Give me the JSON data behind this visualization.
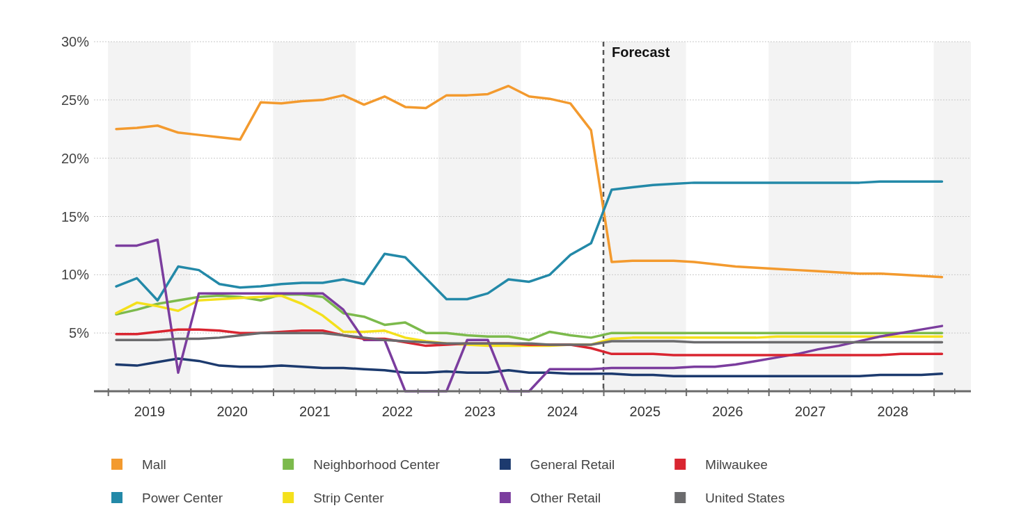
{
  "chart_data": {
    "type": "line",
    "x": [
      2019.1,
      2019.35,
      2019.6,
      2019.85,
      2020.1,
      2020.35,
      2020.6,
      2020.85,
      2021.1,
      2021.35,
      2021.6,
      2021.85,
      2022.1,
      2022.35,
      2022.6,
      2022.85,
      2023.1,
      2023.35,
      2023.6,
      2023.85,
      2024.1,
      2024.35,
      2024.6,
      2024.85,
      2025.1,
      2025.35,
      2025.6,
      2025.85,
      2026.1,
      2026.35,
      2026.6,
      2026.85,
      2027.1,
      2027.35,
      2027.6,
      2027.85,
      2028.1,
      2028.35,
      2028.6,
      2028.85,
      2029.1
    ],
    "series": [
      {
        "name": "Mall",
        "color": "#f39a2e",
        "values": [
          22.5,
          22.6,
          22.8,
          22.2,
          22.0,
          21.8,
          21.6,
          24.8,
          24.7,
          24.9,
          25.0,
          25.4,
          24.6,
          25.3,
          24.4,
          24.3,
          25.4,
          25.4,
          25.5,
          26.2,
          25.3,
          25.1,
          24.7,
          22.4,
          11.1,
          11.2,
          11.2,
          11.2,
          11.1,
          10.9,
          10.7,
          10.6,
          10.5,
          10.4,
          10.3,
          10.2,
          10.1,
          10.1,
          10.0,
          9.9,
          9.8
        ]
      },
      {
        "name": "Power Center",
        "color": "#2389a8",
        "values": [
          9.0,
          9.7,
          7.8,
          10.7,
          10.4,
          9.2,
          8.9,
          9.0,
          9.2,
          9.3,
          9.3,
          9.6,
          9.2,
          11.8,
          11.5,
          9.7,
          7.9,
          7.9,
          8.4,
          9.6,
          9.4,
          10.0,
          11.7,
          12.7,
          17.3,
          17.5,
          17.7,
          17.8,
          17.9,
          17.9,
          17.9,
          17.9,
          17.9,
          17.9,
          17.9,
          17.9,
          17.9,
          18.0,
          18.0,
          18.0,
          18.0
        ]
      },
      {
        "name": "Neighborhood Center",
        "color": "#7cba4c",
        "values": [
          6.6,
          7.0,
          7.5,
          7.8,
          8.1,
          8.2,
          8.1,
          7.8,
          8.3,
          8.3,
          8.1,
          6.7,
          6.4,
          5.7,
          5.9,
          5.0,
          5.0,
          4.8,
          4.7,
          4.7,
          4.4,
          5.1,
          4.8,
          4.6,
          5.0,
          5.0,
          5.0,
          5.0,
          5.0,
          5.0,
          5.0,
          5.0,
          5.0,
          5.0,
          5.0,
          5.0,
          5.0,
          5.0,
          5.0,
          5.0,
          5.0
        ]
      },
      {
        "name": "Strip Center",
        "color": "#f4e01c",
        "values": [
          6.7,
          7.6,
          7.3,
          6.9,
          7.8,
          7.9,
          8.0,
          8.1,
          8.2,
          7.5,
          6.5,
          5.1,
          5.1,
          5.2,
          4.6,
          4.3,
          4.1,
          4.0,
          3.9,
          3.9,
          3.9,
          3.9,
          4.0,
          4.0,
          4.5,
          4.6,
          4.6,
          4.6,
          4.6,
          4.6,
          4.6,
          4.6,
          4.7,
          4.7,
          4.7,
          4.7,
          4.7,
          4.7,
          4.7,
          4.7,
          4.7
        ]
      },
      {
        "name": "General Retail",
        "color": "#1c3a6e",
        "values": [
          2.3,
          2.2,
          2.5,
          2.8,
          2.6,
          2.2,
          2.1,
          2.1,
          2.2,
          2.1,
          2.0,
          2.0,
          1.9,
          1.8,
          1.6,
          1.6,
          1.7,
          1.6,
          1.6,
          1.8,
          1.6,
          1.6,
          1.5,
          1.5,
          1.5,
          1.4,
          1.4,
          1.3,
          1.3,
          1.3,
          1.3,
          1.3,
          1.3,
          1.3,
          1.3,
          1.3,
          1.3,
          1.4,
          1.4,
          1.4,
          1.5
        ]
      },
      {
        "name": "Other Retail",
        "color": "#7b3d9e",
        "values": [
          12.5,
          12.5,
          13.0,
          1.6,
          8.4,
          8.4,
          8.4,
          8.4,
          8.4,
          8.4,
          8.4,
          7.0,
          4.4,
          4.4,
          0,
          0,
          0,
          4.4,
          4.4,
          0,
          0,
          1.9,
          1.9,
          1.9,
          2.0,
          2.0,
          2.0,
          2.0,
          2.1,
          2.1,
          2.3,
          2.6,
          2.9,
          3.2,
          3.6,
          3.9,
          4.3,
          4.7,
          5.0,
          5.3,
          5.6
        ]
      },
      {
        "name": "Milwaukee",
        "color": "#d92530",
        "values": [
          4.9,
          4.9,
          5.1,
          5.3,
          5.3,
          5.2,
          5.0,
          5.0,
          5.1,
          5.2,
          5.2,
          4.8,
          4.5,
          4.5,
          4.2,
          3.9,
          4.0,
          4.1,
          4.1,
          4.1,
          4.0,
          4.0,
          4.0,
          3.7,
          3.2,
          3.2,
          3.2,
          3.1,
          3.1,
          3.1,
          3.1,
          3.1,
          3.1,
          3.1,
          3.1,
          3.1,
          3.1,
          3.1,
          3.2,
          3.2,
          3.2
        ]
      },
      {
        "name": "United States",
        "color": "#6b6b6d",
        "values": [
          4.4,
          4.4,
          4.4,
          4.5,
          4.5,
          4.6,
          4.8,
          5.0,
          5.0,
          5.0,
          5.0,
          4.8,
          4.6,
          4.4,
          4.3,
          4.2,
          4.1,
          4.1,
          4.1,
          4.1,
          4.1,
          4.0,
          4.0,
          4.0,
          4.3,
          4.3,
          4.3,
          4.3,
          4.2,
          4.2,
          4.2,
          4.2,
          4.2,
          4.2,
          4.2,
          4.2,
          4.2,
          4.2,
          4.2,
          4.2,
          4.2
        ]
      }
    ],
    "xlim": [
      2018.83,
      2029.45
    ],
    "xticks": [
      {
        "value": 2019.5,
        "label": "2019"
      },
      {
        "value": 2020.5,
        "label": "2020"
      },
      {
        "value": 2021.5,
        "label": "2021"
      },
      {
        "value": 2022.5,
        "label": "2022"
      },
      {
        "value": 2023.5,
        "label": "2023"
      },
      {
        "value": 2024.5,
        "label": "2024"
      },
      {
        "value": 2025.5,
        "label": "2025"
      },
      {
        "value": 2026.5,
        "label": "2026"
      },
      {
        "value": 2027.5,
        "label": "2027"
      },
      {
        "value": 2028.5,
        "label": "2028"
      },
      {
        "value": 2019,
        "label": null
      },
      {
        "value": 2019.25,
        "label": null
      },
      {
        "value": 2019.75,
        "label": null
      },
      {
        "value": 2020,
        "label": null
      },
      {
        "value": 2020.25,
        "label": null
      },
      {
        "value": 2020.75,
        "label": null
      },
      {
        "value": 2021,
        "label": null
      },
      {
        "value": 2021.25,
        "label": null
      },
      {
        "value": 2021.75,
        "label": null
      },
      {
        "value": 2022,
        "label": null
      },
      {
        "value": 2022.25,
        "label": null
      },
      {
        "value": 2022.75,
        "label": null
      },
      {
        "value": 2023,
        "label": null
      },
      {
        "value": 2023.25,
        "label": null
      },
      {
        "value": 2023.75,
        "label": null
      },
      {
        "value": 2024,
        "label": null
      },
      {
        "value": 2024.25,
        "label": null
      },
      {
        "value": 2024.75,
        "label": null
      },
      {
        "value": 2025,
        "label": null
      },
      {
        "value": 2025.25,
        "label": null
      },
      {
        "value": 2025.75,
        "label": null
      },
      {
        "value": 2026,
        "label": null
      },
      {
        "value": 2026.25,
        "label": null
      },
      {
        "value": 2026.75,
        "label": null
      },
      {
        "value": 2027,
        "label": null
      },
      {
        "value": 2027.25,
        "label": null
      },
      {
        "value": 2027.75,
        "label": null
      },
      {
        "value": 2028,
        "label": null
      },
      {
        "value": 2028.25,
        "label": null
      },
      {
        "value": 2028.75,
        "label": null
      },
      {
        "value": 2029,
        "label": null
      },
      {
        "value": 2029.25,
        "label": null
      }
    ],
    "ylim": [
      0,
      30
    ],
    "yticks": [
      {
        "value": 5,
        "label": "5%"
      },
      {
        "value": 10,
        "label": "10%"
      },
      {
        "value": 15,
        "label": "15%"
      },
      {
        "value": 20,
        "label": "20%"
      },
      {
        "value": 25,
        "label": "25%"
      },
      {
        "value": 30,
        "label": "30%"
      }
    ],
    "grid": "y",
    "bands": [
      {
        "axis": "x",
        "from": 2019,
        "to": 2020,
        "color": "#f3f3f3"
      },
      {
        "axis": "x",
        "from": 2021,
        "to": 2022,
        "color": "#f3f3f3"
      },
      {
        "axis": "x",
        "from": 2023,
        "to": 2024,
        "color": "#f3f3f3"
      },
      {
        "axis": "x",
        "from": 2025,
        "to": 2026,
        "color": "#f3f3f3"
      },
      {
        "axis": "x",
        "from": 2027,
        "to": 2028,
        "color": "#f3f3f3"
      },
      {
        "axis": "x",
        "from": 2029,
        "to": 2029.45,
        "color": "#f3f3f3"
      }
    ],
    "ref_lines": [
      {
        "axis": "x",
        "value": 2025,
        "label": "Forecast",
        "color": "#555555",
        "line_style": "dashed"
      }
    ],
    "legend": "bottom",
    "marker": "none",
    "line_style": "solid"
  }
}
